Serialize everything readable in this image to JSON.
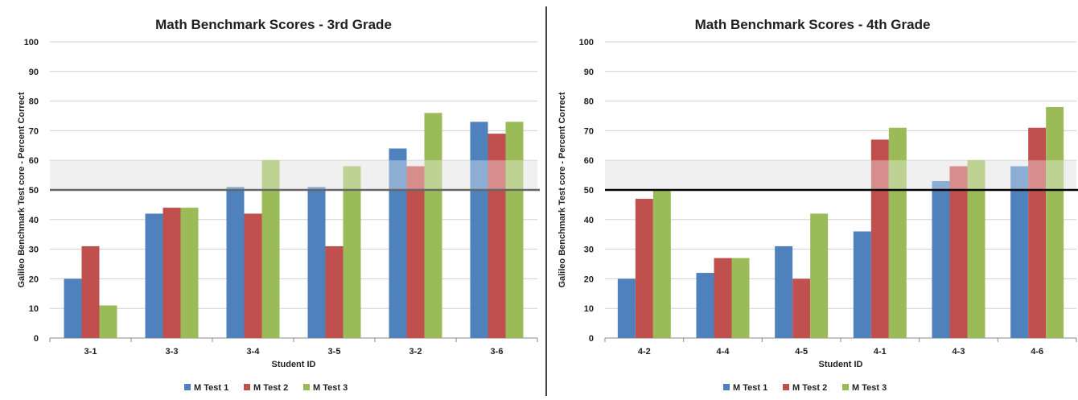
{
  "colors": {
    "series": [
      "#4f81bd",
      "#c0504d",
      "#9bbb59"
    ],
    "band": "#d9d9d9",
    "threshold": "#666666",
    "threshold_right": "#000000",
    "grid": "#d0d0d0",
    "text": "#1f1f1f"
  },
  "chart_data": [
    {
      "type": "bar",
      "title": "Math Benchmark Scores - 3rd Grade",
      "xlabel": "Student ID",
      "ylabel": "Galileo Benchmark Test core - Percent Correct",
      "ylim": [
        0,
        100
      ],
      "yticks": [
        "0",
        "10",
        "20",
        "30",
        "40",
        "50",
        "60",
        "70",
        "80",
        "90",
        "100"
      ],
      "grid": true,
      "legend_position": "bottom",
      "categories": [
        "3-1",
        "3-3",
        "3-4",
        "3-5",
        "3-2",
        "3-6"
      ],
      "series": [
        {
          "name": "M Test 1",
          "values": [
            20,
            42,
            51,
            51,
            64,
            73
          ]
        },
        {
          "name": "M Test 2",
          "values": [
            31,
            44,
            42,
            31,
            58,
            69
          ]
        },
        {
          "name": "M Test 3",
          "values": [
            11,
            44,
            60,
            58,
            76,
            73
          ]
        }
      ],
      "band": [
        50,
        60
      ],
      "threshold": 50
    },
    {
      "type": "bar",
      "title": "Math Benchmark Scores - 4th Grade",
      "xlabel": "Student ID",
      "ylabel": "Galileo Benchmark Test core - Percent Correct",
      "ylim": [
        0,
        100
      ],
      "yticks": [
        "0",
        "10",
        "20",
        "30",
        "40",
        "50",
        "60",
        "70",
        "80",
        "90",
        "100"
      ],
      "grid": true,
      "legend_position": "bottom",
      "categories": [
        "4-2",
        "4-4",
        "4-5",
        "4-1",
        "4-3",
        "4-6"
      ],
      "series": [
        {
          "name": "M Test 1",
          "values": [
            20,
            22,
            31,
            36,
            53,
            58
          ]
        },
        {
          "name": "M Test 2",
          "values": [
            47,
            27,
            20,
            67,
            58,
            71
          ]
        },
        {
          "name": "M Test 3",
          "values": [
            50,
            27,
            42,
            71,
            60,
            78
          ]
        }
      ],
      "band": [
        50,
        60
      ],
      "threshold": 50
    }
  ]
}
